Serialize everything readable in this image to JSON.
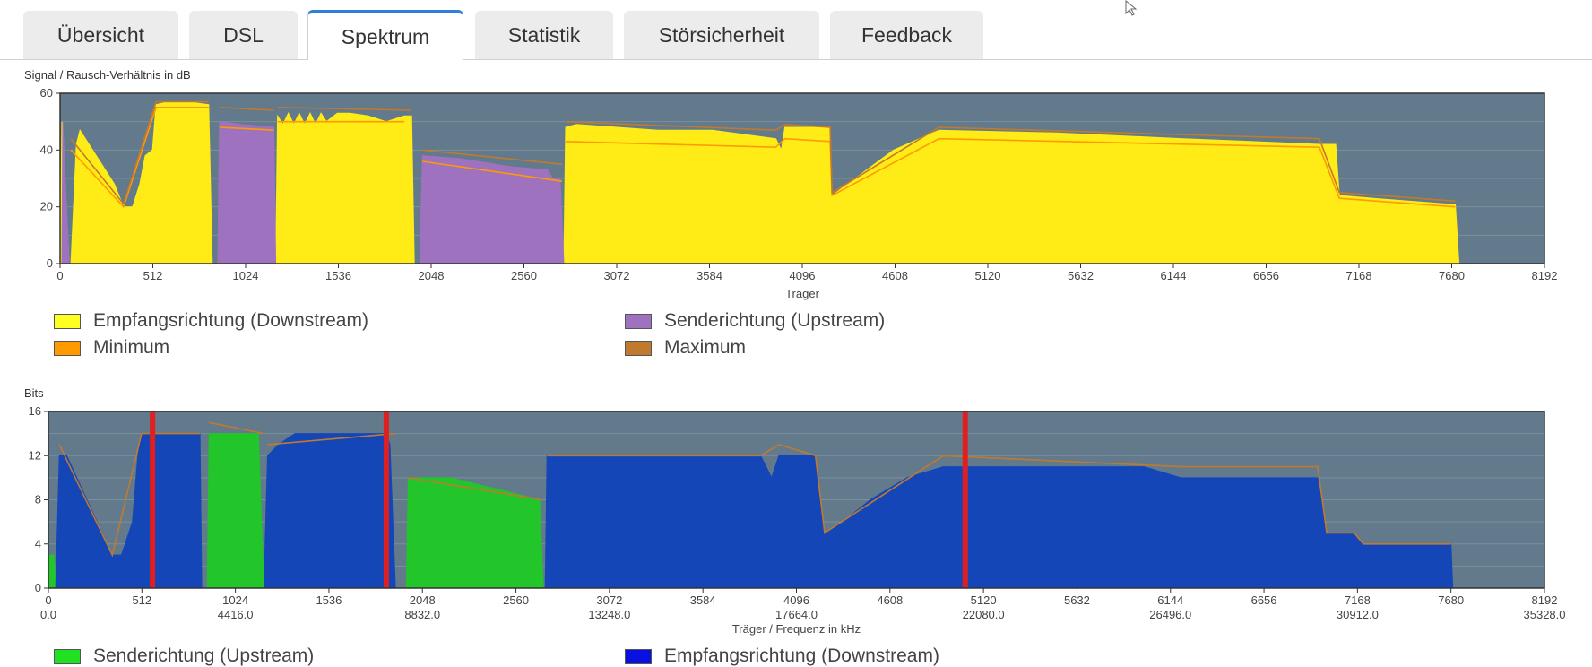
{
  "tabs": [
    {
      "label": "Übersicht",
      "active": false
    },
    {
      "label": "DSL",
      "active": false
    },
    {
      "label": "Spektrum",
      "active": true
    },
    {
      "label": "Statistik",
      "active": false
    },
    {
      "label": "Störsicherheit",
      "active": false
    },
    {
      "label": "Feedback",
      "active": false
    }
  ],
  "colors": {
    "downstream_snr": "#ffeb16",
    "upstream_snr": "#9e72be",
    "minimum": "#ff9a00",
    "maximum": "#c07a30",
    "upstream_bits": "#22c52a",
    "downstream_bits": "#1446b8",
    "plot_bg": "#627a8c",
    "marker": "#e02020"
  },
  "chart_data": [
    {
      "type": "area",
      "title": "Signal / Rausch-Verhältnis in dB",
      "xlabel": "Träger",
      "ylabel": "Signal / Rausch-Verhältnis in dB",
      "xlim": [
        0,
        8192
      ],
      "ylim": [
        0,
        60
      ],
      "xticks": [
        "0",
        "512",
        "1024",
        "1536",
        "2048",
        "2560",
        "3072",
        "3584",
        "4096",
        "4608",
        "5120",
        "5632",
        "6144",
        "6656",
        "7168",
        "7680",
        "8192"
      ],
      "yticks": [
        "0",
        "20",
        "40",
        "60"
      ],
      "series": [
        {
          "name": "Empfangsrichtung (Downstream)",
          "segments": [
            [
              [
                0,
                0
              ],
              [
                10,
                50
              ],
              [
                50,
                0
              ],
              [
                60,
                0
              ],
              [
                90,
                42
              ],
              [
                110,
                47
              ],
              [
                200,
                38
              ],
              [
                300,
                28
              ],
              [
                350,
                20
              ],
              [
                400,
                20
              ],
              [
                440,
                28
              ],
              [
                470,
                38
              ],
              [
                510,
                40
              ],
              [
                530,
                56
              ],
              [
                600,
                57
              ],
              [
                700,
                57
              ],
              [
                820,
                56
              ],
              [
                840,
                0
              ]
            ],
            [
              [
                1190,
                0
              ],
              [
                1200,
                52
              ],
              [
                1230,
                49
              ],
              [
                1260,
                53
              ],
              [
                1290,
                49
              ],
              [
                1320,
                53
              ],
              [
                1350,
                49
              ],
              [
                1380,
                53
              ],
              [
                1410,
                49
              ],
              [
                1440,
                53
              ],
              [
                1470,
                50
              ],
              [
                1530,
                53
              ],
              [
                1600,
                53
              ],
              [
                1700,
                52
              ],
              [
                1800,
                50
              ],
              [
                1900,
                52
              ],
              [
                1940,
                52
              ],
              [
                1955,
                0
              ]
            ],
            [
              [
                2780,
                0
              ],
              [
                2790,
                48
              ],
              [
                2850,
                49
              ],
              [
                3300,
                47
              ],
              [
                3600,
                47
              ],
              [
                3950,
                44
              ],
              [
                3980,
                40
              ],
              [
                4000,
                48
              ],
              [
                4120,
                48
              ],
              [
                4250,
                48
              ],
              [
                4260,
                24
              ],
              [
                4600,
                40
              ],
              [
                4850,
                47
              ],
              [
                5500,
                46
              ],
              [
                6200,
                44
              ],
              [
                6950,
                42
              ],
              [
                7040,
                42
              ],
              [
                7060,
                24
              ],
              [
                7250,
                23
              ],
              [
                7650,
                21
              ],
              [
                7700,
                21
              ],
              [
                7720,
                0
              ]
            ]
          ]
        },
        {
          "name": "Senderichtung (Upstream)",
          "segments": [
            [
              [
                10,
                0
              ],
              [
                15,
                50
              ],
              [
                50,
                0
              ]
            ],
            [
              [
                870,
                0
              ],
              [
                880,
                50
              ],
              [
                1000,
                49
              ],
              [
                1180,
                48
              ],
              [
                1190,
                0
              ]
            ],
            [
              [
                1985,
                0
              ],
              [
                2000,
                38
              ],
              [
                2200,
                37
              ],
              [
                2500,
                34
              ],
              [
                2690,
                33
              ],
              [
                2720,
                30
              ],
              [
                2760,
                30
              ],
              [
                2780,
                0
              ]
            ]
          ]
        },
        {
          "name": "Minimum",
          "segments": [
            [
              [
                60,
                40
              ],
              [
                350,
                20
              ],
              [
                530,
                55
              ],
              [
                820,
                55
              ]
            ],
            [
              [
                880,
                48
              ],
              [
                1180,
                47
              ]
            ],
            [
              [
                1200,
                50
              ],
              [
                1900,
                50
              ]
            ],
            [
              [
                2000,
                36
              ],
              [
                2770,
                29
              ]
            ],
            [
              [
                2790,
                43
              ],
              [
                3950,
                41
              ],
              [
                4000,
                44
              ],
              [
                4250,
                43
              ],
              [
                4260,
                24
              ],
              [
                4850,
                44
              ],
              [
                6950,
                41
              ],
              [
                7060,
                23
              ],
              [
                7700,
                20
              ]
            ]
          ]
        },
        {
          "name": "Maximum",
          "segments": [
            [
              [
                60,
                44
              ],
              [
                350,
                21
              ],
              [
                530,
                57
              ],
              [
                820,
                57
              ]
            ],
            [
              [
                880,
                55
              ],
              [
                1180,
                54
              ]
            ],
            [
              [
                1200,
                55
              ],
              [
                1940,
                54
              ]
            ],
            [
              [
                2000,
                40
              ],
              [
                2770,
                35
              ]
            ],
            [
              [
                2790,
                50
              ],
              [
                3950,
                47
              ],
              [
                4000,
                49
              ],
              [
                4250,
                48
              ],
              [
                4260,
                25
              ],
              [
                4850,
                48
              ],
              [
                6950,
                44
              ],
              [
                7060,
                25
              ],
              [
                7700,
                22
              ]
            ]
          ]
        }
      ]
    },
    {
      "type": "area",
      "title": "Bits",
      "xlabel": "Träger / Frequenz in kHz",
      "ylabel": "Bits",
      "xlim": [
        0,
        8192
      ],
      "ylim": [
        0,
        16
      ],
      "xticks": [
        "0",
        "512",
        "1024",
        "1536",
        "2048",
        "2560",
        "3072",
        "3584",
        "4096",
        "4608",
        "5120",
        "5632",
        "6144",
        "6656",
        "7168",
        "7680",
        "8192"
      ],
      "xticks_freq": [
        "0.0",
        "4416.0",
        "8832.0",
        "13248.0",
        "17664.0",
        "22080.0",
        "26496.0",
        "30912.0",
        "35328.0"
      ],
      "yticks": [
        "0",
        "4",
        "8",
        "12",
        "16"
      ],
      "markers": [
        570,
        1850,
        5020
      ],
      "series": [
        {
          "name": "Senderichtung (Upstream)",
          "segments": [
            [
              [
                0,
                0
              ],
              [
                5,
                3
              ],
              [
                30,
                3
              ],
              [
                40,
                0
              ]
            ],
            [
              [
                870,
                0
              ],
              [
                880,
                14
              ],
              [
                1150,
                14
              ],
              [
                1180,
                0
              ]
            ],
            [
              [
                1960,
                0
              ],
              [
                1970,
                10
              ],
              [
                2200,
                10
              ],
              [
                2450,
                9
              ],
              [
                2690,
                8
              ],
              [
                2710,
                0
              ]
            ]
          ]
        },
        {
          "name": "Empfangsrichtung (Downstream)",
          "segments": [
            [
              [
                40,
                0
              ],
              [
                60,
                12
              ],
              [
                100,
                12
              ],
              [
                350,
                3
              ],
              [
                400,
                3
              ],
              [
                460,
                6
              ],
              [
                490,
                12
              ],
              [
                510,
                14
              ],
              [
                700,
                14
              ],
              [
                830,
                14
              ],
              [
                840,
                0
              ]
            ],
            [
              [
                1180,
                0
              ],
              [
                1200,
                12
              ],
              [
                1260,
                13
              ],
              [
                1350,
                14
              ],
              [
                1850,
                14
              ],
              [
                1870,
                13
              ],
              [
                1900,
                0
              ]
            ],
            [
              [
                2720,
                0
              ],
              [
                2730,
                12
              ],
              [
                3000,
                12
              ],
              [
                3900,
                12
              ],
              [
                3960,
                10
              ],
              [
                4000,
                12
              ],
              [
                4200,
                12
              ],
              [
                4250,
                5
              ],
              [
                4350,
                6
              ],
              [
                4500,
                8
              ],
              [
                4700,
                10
              ],
              [
                4900,
                11
              ],
              [
                5500,
                11
              ],
              [
                6000,
                11
              ],
              [
                6200,
                10
              ],
              [
                6950,
                10
              ],
              [
                7000,
                5
              ],
              [
                7150,
                5
              ],
              [
                7200,
                4
              ],
              [
                7680,
                4
              ],
              [
                7690,
                0
              ]
            ]
          ]
        },
        {
          "name": "Maximum",
          "segments": [
            [
              [
                60,
                13
              ],
              [
                350,
                3
              ],
              [
                510,
                14
              ],
              [
                830,
                14
              ]
            ],
            [
              [
                880,
                15
              ],
              [
                1180,
                14
              ]
            ],
            [
              [
                1200,
                13
              ],
              [
                1900,
                14
              ]
            ],
            [
              [
                1970,
                10
              ],
              [
                2700,
                8
              ]
            ],
            [
              [
                2730,
                12
              ],
              [
                3900,
                12
              ],
              [
                4000,
                13
              ],
              [
                4200,
                12
              ],
              [
                4250,
                5
              ],
              [
                4900,
                12
              ],
              [
                6200,
                11
              ],
              [
                6950,
                11
              ],
              [
                7000,
                5
              ],
              [
                7150,
                5
              ],
              [
                7200,
                4
              ],
              [
                7680,
                4
              ]
            ]
          ]
        }
      ]
    }
  ],
  "snr_chart": {
    "title": "Signal / Rausch-Verhältnis in dB",
    "xlabel": "Träger",
    "legend": {
      "downstream": "Empfangsrichtung (Downstream)",
      "upstream": "Senderichtung (Upstream)",
      "minimum": "Minimum",
      "maximum": "Maximum"
    }
  },
  "bits_chart": {
    "title": "Bits",
    "xlabel": "Träger / Frequenz in kHz",
    "legend": {
      "upstream": "Senderichtung (Upstream)",
      "downstream": "Empfangsrichtung (Downstream)"
    }
  }
}
